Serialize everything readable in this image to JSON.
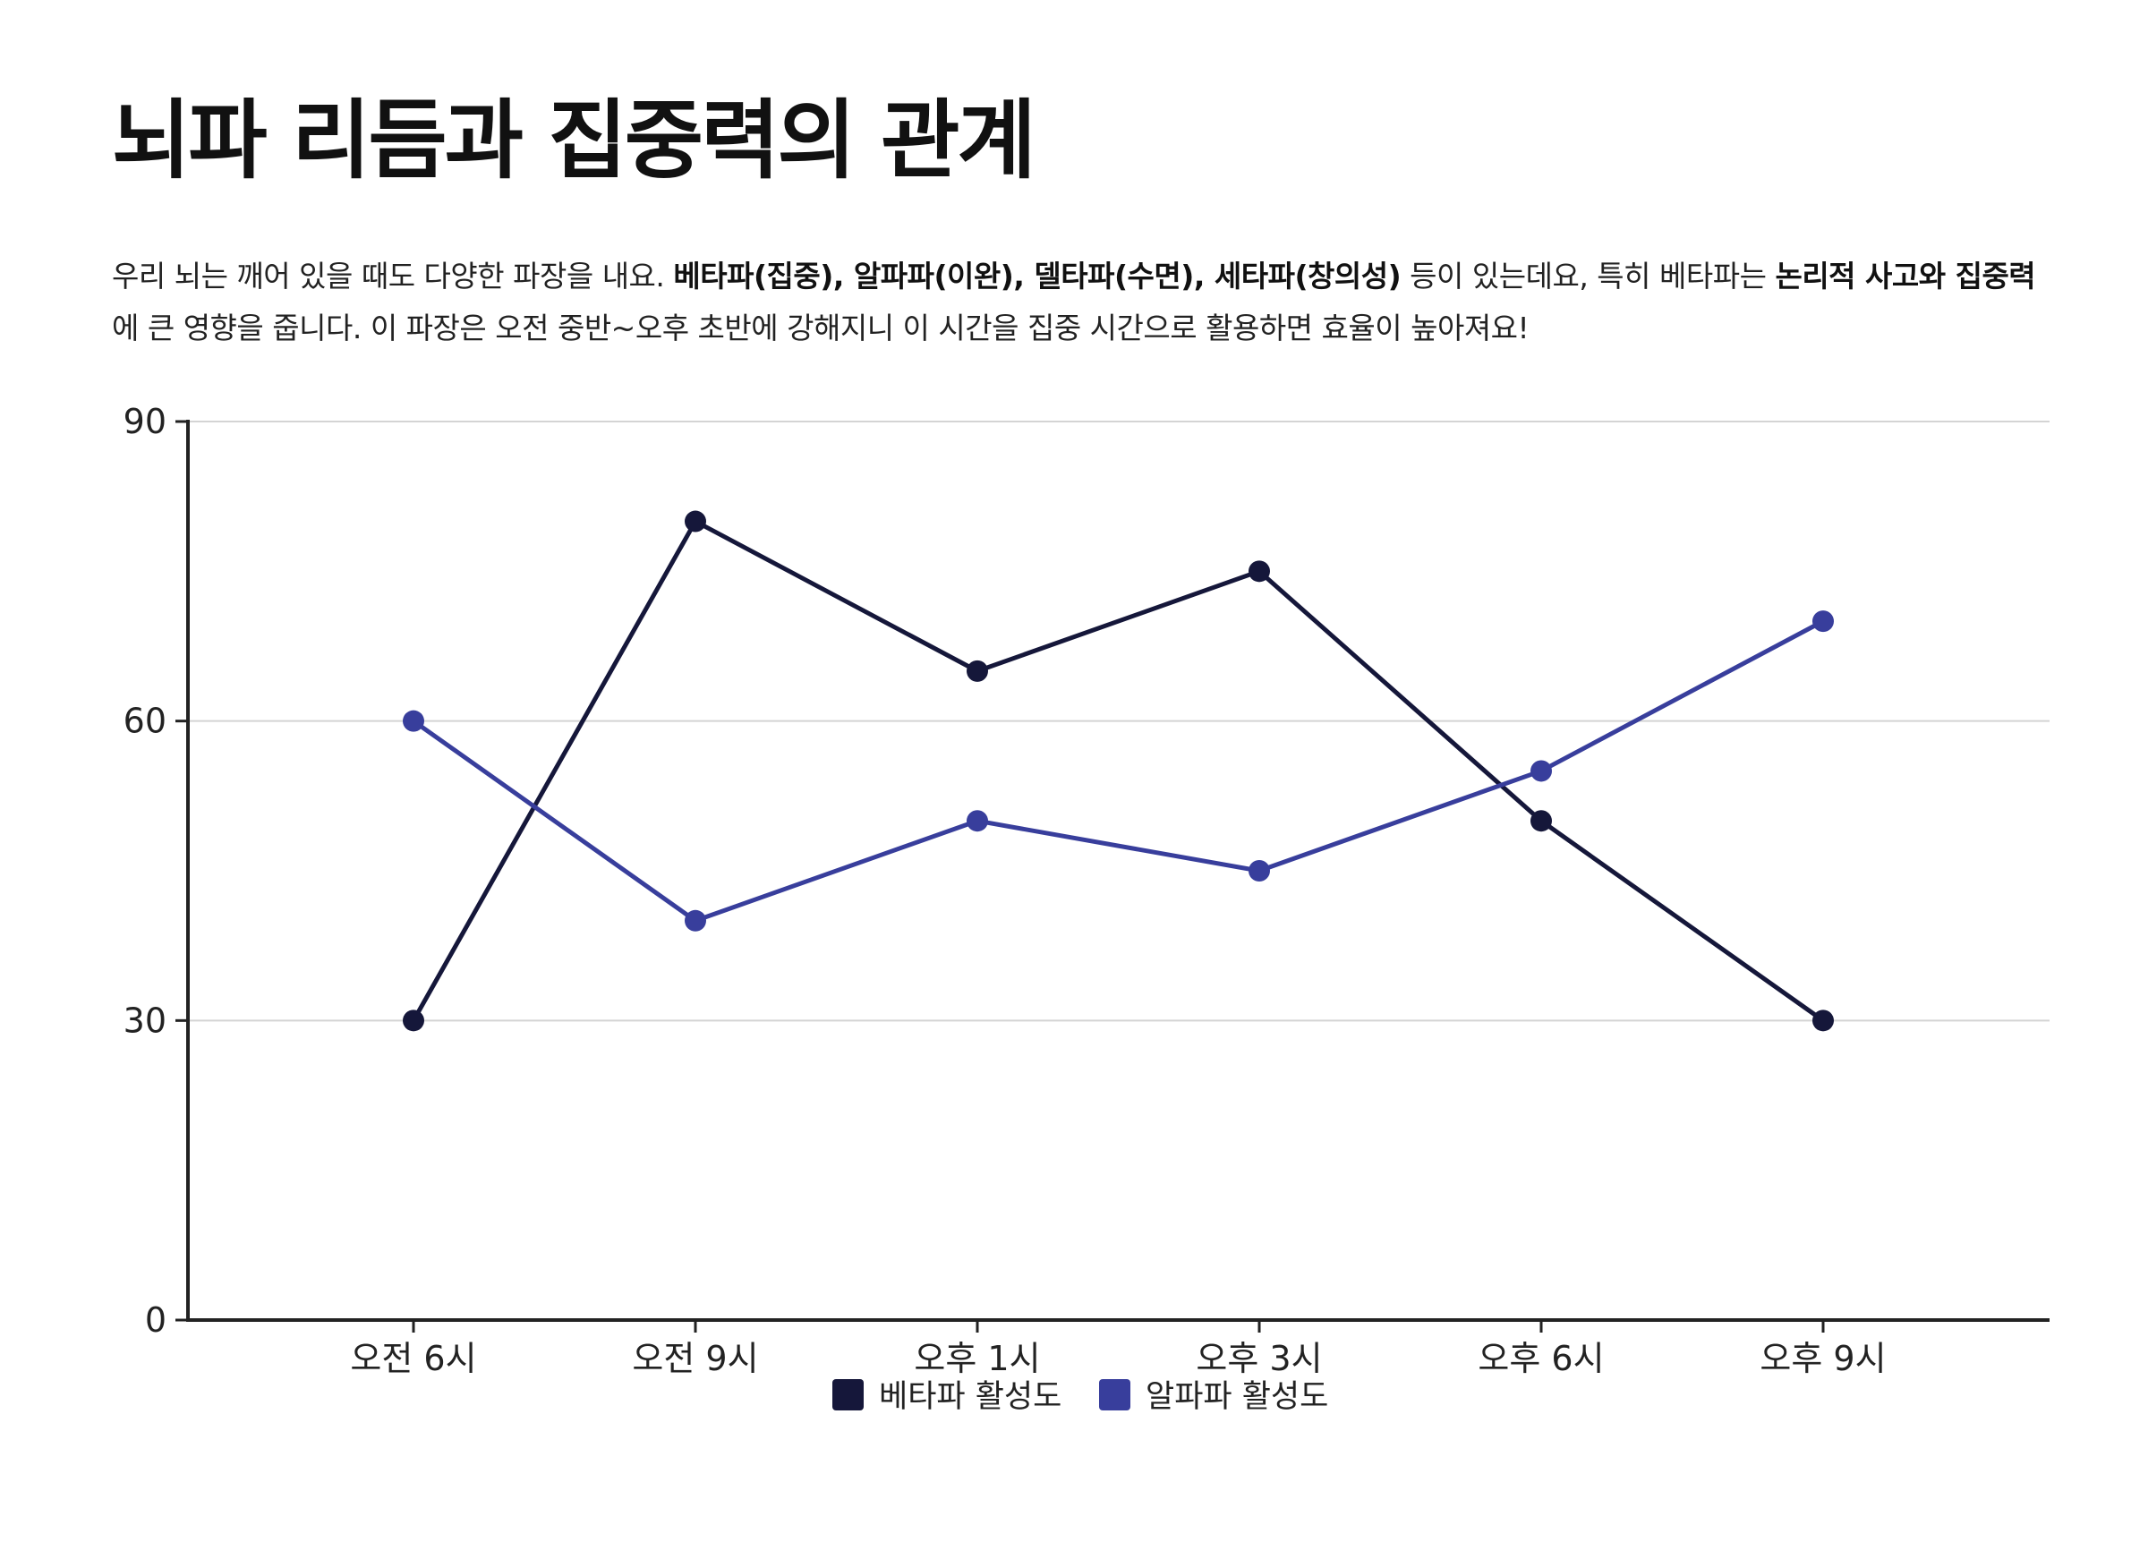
{
  "title": "뇌파 리듬과 집중력의 관계",
  "description": {
    "p1": "우리 뇌는 깨어 있을 때도 다양한 파장을 내요. ",
    "b1": "베타파(집중), 알파파(이완), 델타파(수면), 세타파(창의성)",
    "p2": " 등이 있는데요, 특히 베타파는 ",
    "b2": "논리적 사고와 집중력",
    "p3": "에 큰 영향을 줍니다. 이 파장은 오전 중반~오후 초반에 강해지니 이 시간을 집중 시간으로 활용하면 효율이 높아져요!"
  },
  "chart_data": {
    "type": "line",
    "categories": [
      "오전 6시",
      "오전 9시",
      "오후 1시",
      "오후 3시",
      "오후 6시",
      "오후 9시"
    ],
    "series": [
      {
        "name": "베타파 활성도",
        "values": [
          30,
          80,
          65,
          75,
          50,
          30
        ],
        "color": "#15173a"
      },
      {
        "name": "알파파 활성도",
        "values": [
          60,
          40,
          50,
          45,
          55,
          70
        ],
        "color": "#383e9c"
      }
    ],
    "ylim": [
      0,
      90
    ],
    "yticks": [
      0,
      30,
      60,
      90
    ],
    "grid": true,
    "legend": "bottom-center"
  }
}
